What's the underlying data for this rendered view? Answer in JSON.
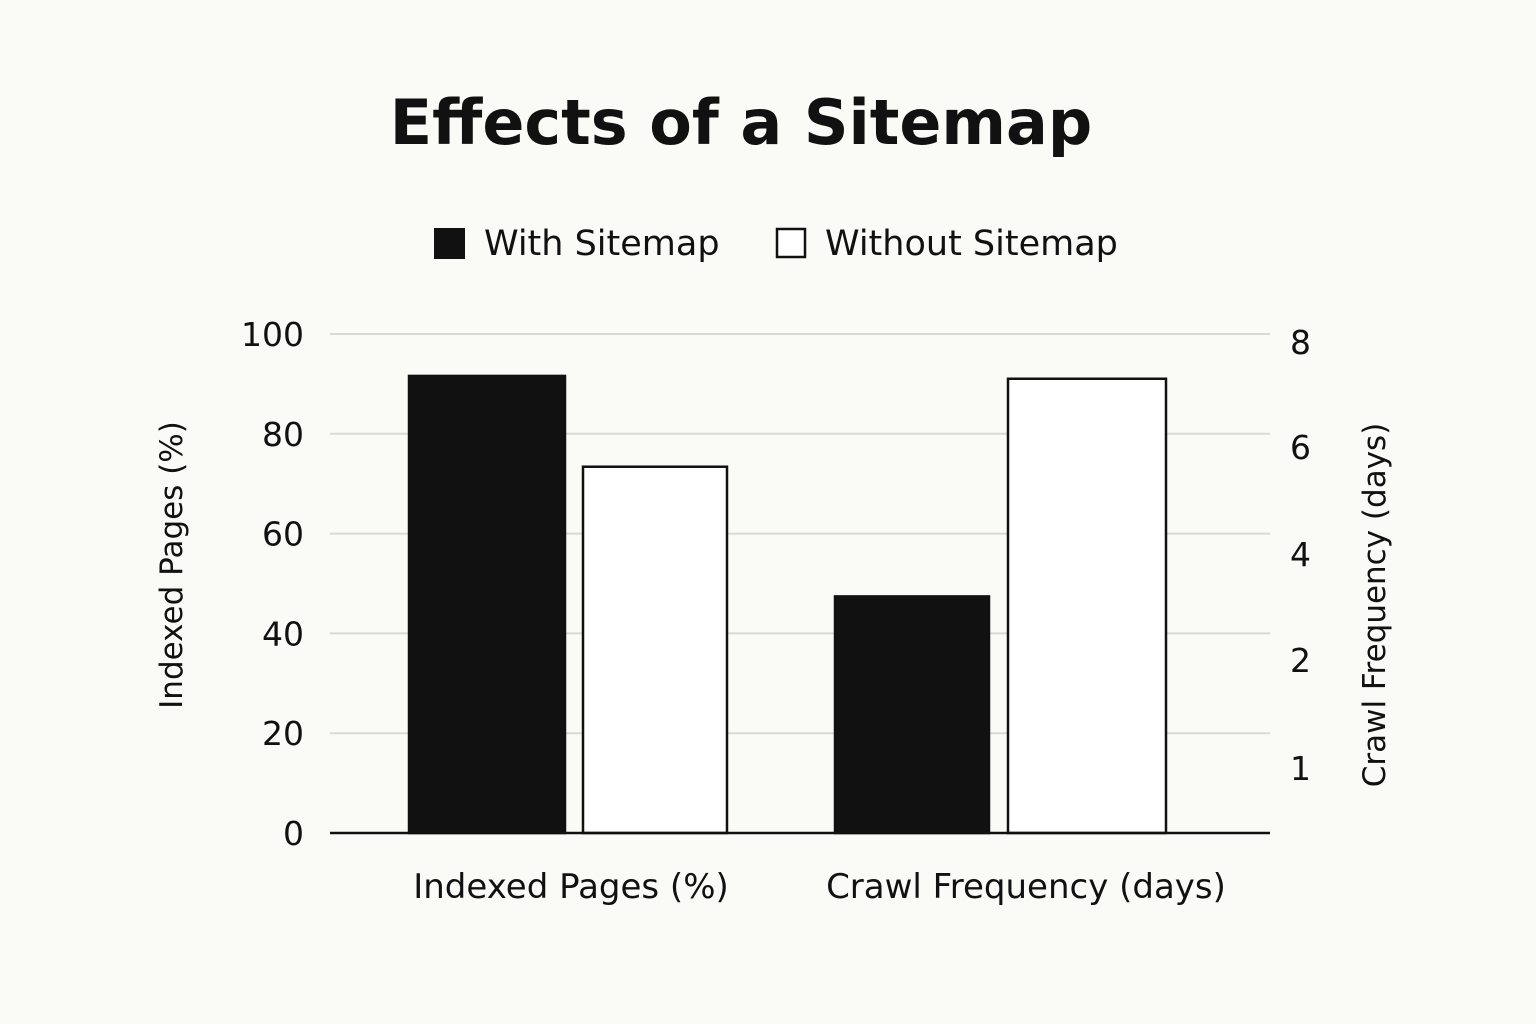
{
  "chart_data": {
    "type": "bar",
    "title": "Effects of a Sitemap",
    "categories": [
      "Indexed Pages (%)",
      "Crawl Frequency (days)"
    ],
    "series": [
      {
        "name": "With Sitemap",
        "values": [
          91.6,
          3.2
        ],
        "color": "#111111"
      },
      {
        "name": "Without Sitemap",
        "values": [
          73.4,
          7.3
        ],
        "color": "#ffffff"
      }
    ],
    "value_axis": [
      "left",
      "right"
    ],
    "ylabel_left": "Indexed Pages (%)",
    "ylabel_right": "Crawl Frequency (days)",
    "ylim_left": [
      0,
      100
    ],
    "ticks_left": [
      "0",
      "20",
      "40",
      "60",
      "80",
      "100"
    ],
    "ticks_right": [
      "1",
      "2",
      "4",
      "6",
      "8"
    ],
    "legend_position": "top-center",
    "grid": true
  }
}
